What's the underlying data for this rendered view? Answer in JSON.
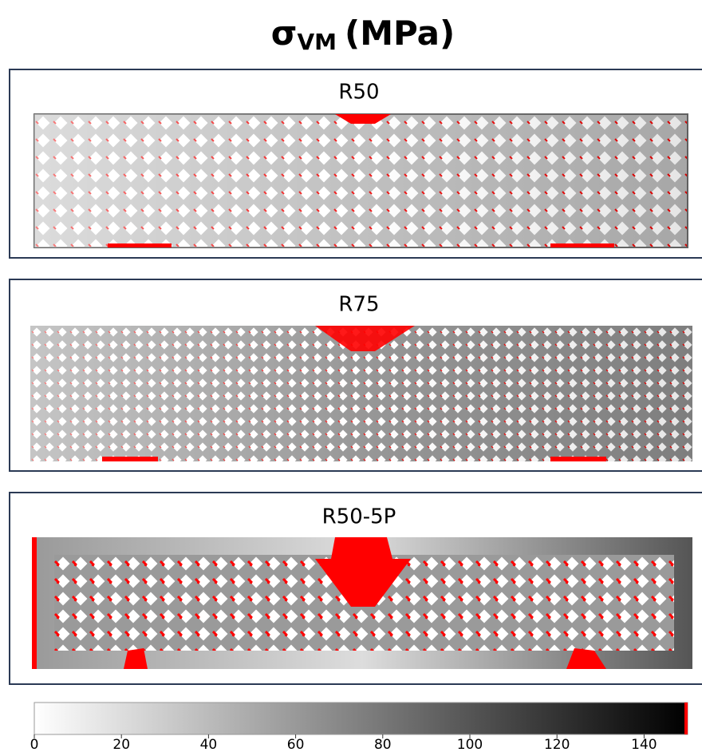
{
  "header": {
    "symbol": "σ",
    "subscript": "VM",
    "unit": "(MPa)"
  },
  "panels": [
    {
      "label": "R50"
    },
    {
      "label": "R75"
    },
    {
      "label": "R50-5P"
    }
  ],
  "colorbar": {
    "lim": [
      0,
      150
    ],
    "ticks": [
      0,
      20,
      40,
      60,
      80,
      100,
      120,
      140
    ]
  }
}
